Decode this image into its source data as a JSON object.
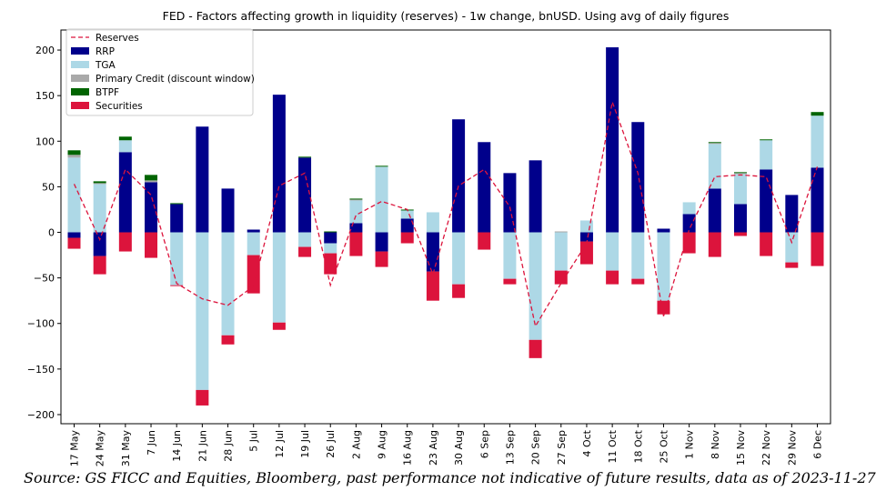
{
  "chart_data": {
    "type": "bar",
    "stacked": true,
    "title": "FED - Factors affecting growth in liquidity (reserves) - 1w change, bnUSD. Using avg of daily figures",
    "xlabel": "",
    "ylabel": "",
    "ylim": [
      -210,
      222
    ],
    "yticks": [
      -200,
      -150,
      -100,
      -50,
      0,
      50,
      100,
      150,
      200
    ],
    "grid": false,
    "legend_position": "top-left",
    "categories": [
      "17 May",
      "24 May",
      "31 May",
      "7 Jun",
      "14 Jun",
      "21 Jun",
      "28 Jun",
      "5 Jul",
      "12 Jul",
      "19 Jul",
      "26 Jul",
      "2 Aug",
      "9 Aug",
      "16 Aug",
      "23 Aug",
      "30 Aug",
      "6 Sep",
      "13 Sep",
      "20 Sep",
      "27 Sep",
      "4 Oct",
      "11 Oct",
      "18 Oct",
      "25 Oct",
      "1 Nov",
      "8 Nov",
      "15 Nov",
      "22 Nov",
      "29 Nov",
      "6 Dec"
    ],
    "series": [
      {
        "name": "RRP",
        "kind": "bar",
        "color": "#00008b",
        "values": [
          -6,
          -26,
          88,
          55,
          31,
          116,
          48,
          3,
          151,
          82,
          -12,
          10,
          -21,
          15,
          -43,
          124,
          99,
          65,
          79,
          0,
          -10,
          203,
          121,
          4,
          20,
          48,
          31,
          69,
          41,
          71
        ]
      },
      {
        "name": "TGA",
        "kind": "bar",
        "color": "#add8e6",
        "values": [
          82,
          53,
          13,
          0,
          -58,
          -173,
          -113,
          -25,
          -99,
          -16,
          -11,
          25,
          72,
          9,
          22,
          -57,
          0,
          -51,
          -118,
          -42,
          13,
          -42,
          -51,
          -75,
          13,
          49,
          33,
          32,
          -33,
          57
        ]
      },
      {
        "name": "Primary Credit (discount window)",
        "kind": "bar",
        "color": "#a9a9a9",
        "values": [
          3,
          1,
          0,
          2,
          0,
          0,
          0,
          0,
          0,
          0,
          0,
          1,
          0,
          0,
          0,
          0,
          0,
          0,
          0,
          1,
          0,
          0,
          0,
          0,
          0,
          1,
          1,
          0,
          0,
          0
        ]
      },
      {
        "name": "BTPF",
        "kind": "bar",
        "color": "#006400",
        "values": [
          5,
          2,
          4,
          6,
          1,
          0,
          0,
          0,
          0,
          1,
          1,
          1,
          1,
          1,
          0,
          0,
          0,
          0,
          0,
          0,
          0,
          0,
          0,
          0,
          0,
          1,
          1,
          1,
          0,
          4
        ]
      },
      {
        "name": "Securities",
        "kind": "bar",
        "color": "#dc143c",
        "values": [
          -12,
          -20,
          -21,
          -28,
          -1,
          -17,
          -10,
          -42,
          -8,
          -11,
          -23,
          -26,
          -17,
          -12,
          -32,
          -15,
          -19,
          -6,
          -20,
          -15,
          -25,
          -15,
          -6,
          -15,
          -23,
          -27,
          -4,
          -26,
          -6,
          -37
        ]
      },
      {
        "name": "Reserves",
        "kind": "line",
        "color": "#dc143c",
        "dash": true,
        "values": [
          53,
          -8,
          69,
          41,
          -56,
          -73,
          -80,
          -59,
          51,
          65,
          -58,
          19,
          34,
          25,
          -46,
          51,
          69,
          28,
          -103,
          -56,
          -12,
          143,
          65,
          -92,
          3,
          61,
          63,
          61,
          -11,
          72
        ]
      }
    ],
    "legend": [
      "Reserves",
      "RRP",
      "TGA",
      "Primary Credit (discount window)",
      "BTPF",
      "Securities"
    ]
  },
  "source": "Source: GS FICC and Equities, Bloomberg, past performance not indicative of future results, data as of 2023-11-27"
}
